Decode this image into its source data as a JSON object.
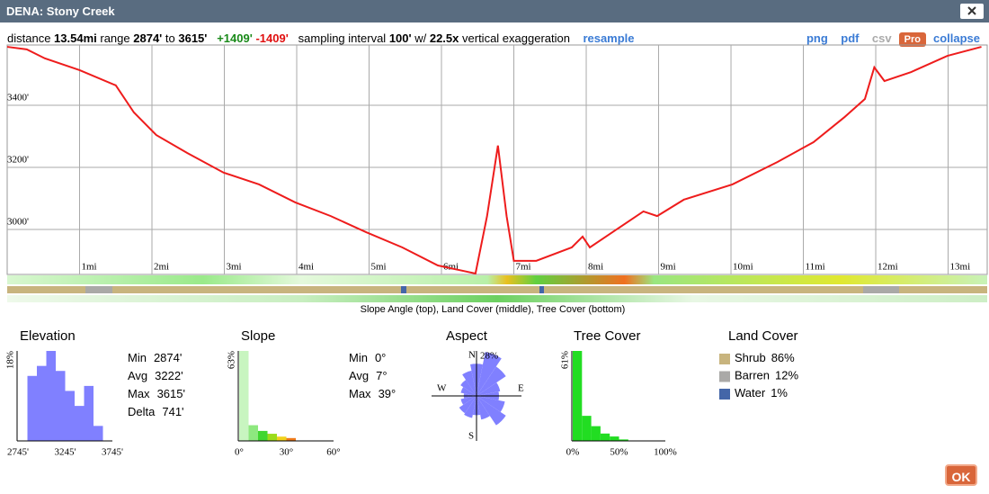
{
  "header": {
    "title": "DENA: Stony Creek"
  },
  "toolbar": {
    "distance_label": "distance",
    "distance": "13.54mi",
    "range_label": "range",
    "range_min": "2874'",
    "to": "to",
    "range_max": "3615'",
    "gain": "+1409'",
    "loss": "-1409'",
    "sampling_label": "sampling interval",
    "interval": "100'",
    "with": "w/",
    "exaggeration": "22.5x",
    "exaggeration_label": "vertical exaggeration",
    "resample": "resample",
    "png": "png",
    "pdf": "pdf",
    "csv": "csv",
    "pro": "Pro",
    "collapse": "collapse"
  },
  "profile": {
    "type": "line",
    "color": "#ee1c1c",
    "xlim": [
      0,
      13.54
    ],
    "ylim": [
      2855,
      3594
    ],
    "xticks": [
      {
        "value": 1,
        "label": "1mi"
      },
      {
        "value": 2,
        "label": "2mi"
      },
      {
        "value": 3,
        "label": "3mi"
      },
      {
        "value": 4,
        "label": "4mi"
      },
      {
        "value": 5,
        "label": "5mi"
      },
      {
        "value": 6,
        "label": "6mi"
      },
      {
        "value": 7,
        "label": "7mi"
      },
      {
        "value": 8,
        "label": "8mi"
      },
      {
        "value": 9,
        "label": "9mi"
      },
      {
        "value": 10,
        "label": "10mi"
      },
      {
        "value": 11,
        "label": "11mi"
      },
      {
        "value": 12,
        "label": "12mi"
      },
      {
        "value": 13,
        "label": "13mi"
      }
    ],
    "yticks": [
      {
        "value": 3000,
        "label": "3000'"
      },
      {
        "value": 3200,
        "label": "3200'"
      },
      {
        "value": 3400,
        "label": "3400'"
      }
    ],
    "x": [
      0,
      0.27,
      0.52,
      1.0,
      1.5,
      1.75,
      2.06,
      2.49,
      2.99,
      3.48,
      3.98,
      4.47,
      4.96,
      5.46,
      5.95,
      6.47,
      6.63,
      6.78,
      6.9,
      7.0,
      7.31,
      7.8,
      7.95,
      8.05,
      8.42,
      8.79,
      8.98,
      9.35,
      10.02,
      10.64,
      11.14,
      11.57,
      11.85,
      11.98,
      12.12,
      12.49,
      12.99,
      13.46
    ],
    "values": [
      3588,
      3580,
      3551,
      3513,
      3464,
      3377,
      3304,
      3246,
      3183,
      3145,
      3087,
      3043,
      2991,
      2942,
      2884,
      2858,
      3043,
      3270,
      3043,
      2899,
      2899,
      2942,
      2977,
      2942,
      3000,
      3058,
      3043,
      3096,
      3145,
      3217,
      3281,
      3362,
      3420,
      3522,
      3478,
      3507,
      3559,
      3588
    ]
  },
  "bands_caption": "Slope Angle (top), Land Cover (middle), Tree Cover (bottom)",
  "elevation": {
    "title": "Elevation",
    "type": "histogram",
    "color": "#8080ff",
    "ylim": [
      0,
      18
    ],
    "ymax": {
      "value": 18,
      "label": "18%"
    },
    "xlim": [
      2745,
      3745
    ],
    "xticks": [
      {
        "value": 2745,
        "label": "2745'"
      },
      {
        "value": 3245,
        "label": "3245'"
      },
      {
        "value": 3745,
        "label": "3745'"
      }
    ],
    "bins": [
      2845,
      2945,
      3045,
      3145,
      3245,
      3345,
      3445,
      3545,
      3645
    ],
    "values": [
      13,
      15,
      18,
      14,
      10,
      7,
      11,
      3
    ],
    "stats": [
      {
        "label": "Min",
        "value": "2874'"
      },
      {
        "label": "Avg",
        "value": "3222'"
      },
      {
        "label": "Max",
        "value": "3615'"
      },
      {
        "label": "Delta",
        "value": "741'"
      }
    ]
  },
  "slope": {
    "title": "Slope",
    "type": "histogram",
    "ylim": [
      0,
      63
    ],
    "ymax": {
      "value": 63,
      "label": "63%"
    },
    "xlim": [
      0,
      60
    ],
    "xticks": [
      {
        "value": 0,
        "label": "0°"
      },
      {
        "value": 30,
        "label": "30°"
      },
      {
        "value": 60,
        "label": "60°"
      }
    ],
    "bins": [
      0,
      6,
      12,
      18,
      24,
      30,
      36
    ],
    "values": [
      63,
      11,
      7,
      5,
      3,
      2
    ],
    "colors": [
      "#c8f5c0",
      "#8ee87f",
      "#3fd62f",
      "#9bdc1a",
      "#f2d21a",
      "#f07a1a"
    ],
    "stats": [
      {
        "label": "Min",
        "value": "0°"
      },
      {
        "label": "Avg",
        "value": "7°"
      },
      {
        "label": "Max",
        "value": "39°"
      }
    ]
  },
  "aspect": {
    "title": "Aspect",
    "type": "rose",
    "color": "#8080ff",
    "max": {
      "value": 28,
      "label": "28%"
    },
    "directions": [
      "N",
      "E",
      "S",
      "W"
    ],
    "values": [
      20,
      28,
      22,
      15,
      14,
      18,
      22,
      15,
      12,
      14,
      13,
      10,
      8,
      10,
      12,
      16
    ]
  },
  "tree_cover": {
    "title": "Tree Cover",
    "type": "histogram",
    "color": "#22dd22",
    "ylim": [
      0,
      61
    ],
    "ymax": {
      "value": 61,
      "label": "61%"
    },
    "xlim": [
      0,
      100
    ],
    "xticks": [
      {
        "value": 0,
        "label": "0%"
      },
      {
        "value": 50,
        "label": "50%"
      },
      {
        "value": 100,
        "label": "100%"
      }
    ],
    "bins": [
      0,
      10,
      20,
      30,
      40,
      50,
      60
    ],
    "values": [
      61,
      17,
      10,
      5,
      3,
      1
    ]
  },
  "land_cover": {
    "title": "Land Cover",
    "items": [
      {
        "name": "Shrub",
        "value": 86,
        "label": "86%",
        "color": "#c8b47e"
      },
      {
        "name": "Barren",
        "value": 12,
        "label": "12%",
        "color": "#aaa9a7"
      },
      {
        "name": "Water",
        "value": 1,
        "label": "1%",
        "color": "#4466a8"
      }
    ]
  },
  "ok": "OK"
}
